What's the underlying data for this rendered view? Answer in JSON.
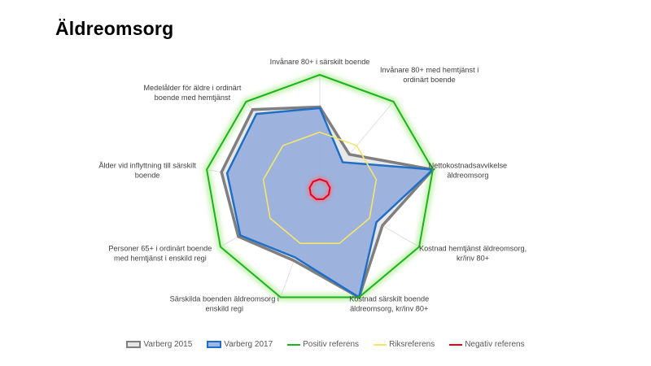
{
  "chart_data": {
    "type": "radar",
    "title": "Äldreomsorg",
    "axes": [
      [
        "Invånare 80+ i särskilt boende"
      ],
      [
        "Invånare 80+ med hemtjänst i",
        "ordinärt boende"
      ],
      [
        "Nettokostnadsavvikelse",
        "äldreomsorg"
      ],
      [
        "Kostnad hemtjänst äldreomsorg,",
        "kr/inv 80+"
      ],
      [
        "Kostnad särskilt boende",
        "äldreomsorg, kr/inv 80+"
      ],
      [
        "Särskilda boenden äldreomsorg i",
        "enskild regi"
      ],
      [
        "Personer 65+ i ordinärt boende",
        "med hemtjänst i enskild regi"
      ],
      [
        "Ålder vid inflyttning till särskilt",
        "boende"
      ],
      [
        "Medelålder för äldre i ordinärt",
        "boende med hemtjänst"
      ]
    ],
    "rlim": [
      0,
      1
    ],
    "series": [
      {
        "name": "Varberg 2015",
        "color": "#7f7f7f",
        "values": [
          0.72,
          0.4,
          1.0,
          0.63,
          1.0,
          0.66,
          0.82,
          0.87,
          0.91
        ]
      },
      {
        "name": "Varberg 2017",
        "color": "#1f6fc6",
        "fill": "#7f9ed8",
        "values": [
          0.71,
          0.31,
          1.0,
          0.57,
          1.0,
          0.63,
          0.8,
          0.82,
          0.86
        ]
      },
      {
        "name": "Positiv referens",
        "color": "#1db31d",
        "values": [
          1,
          1,
          1,
          1,
          1,
          1,
          1,
          1,
          1
        ]
      },
      {
        "name": "Riksreferens",
        "color": "#f5e56b",
        "values": [
          0.5,
          0.5,
          0.5,
          0.5,
          0.5,
          0.5,
          0.5,
          0.5,
          0.5
        ]
      },
      {
        "name": "Negativ referens",
        "color": "#e3001b",
        "values": [
          0.09,
          0.09,
          0.09,
          0.09,
          0.09,
          0.09,
          0.09,
          0.09,
          0.09
        ]
      }
    ]
  }
}
